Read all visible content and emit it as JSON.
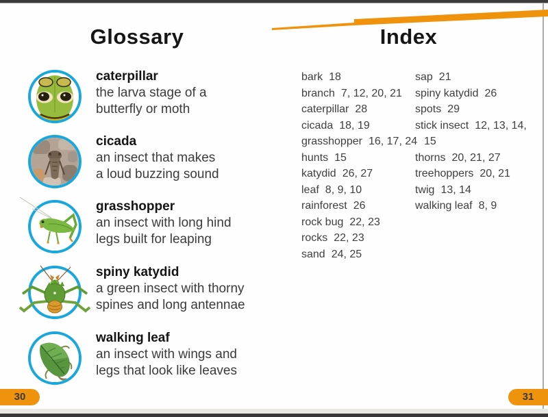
{
  "colors": {
    "accent_orange": "#EF920C",
    "photo_ring_blue": "#1AA7DC",
    "title_black": "#161616",
    "body_text": "#3B3B3B",
    "edge_bar": "#3B3B3B"
  },
  "page": {
    "left_page_number": "30",
    "right_page_number": "31"
  },
  "icons": [
    "caterpillar-photo",
    "cicada-photo",
    "grasshopper-photo",
    "spiny-katydid-photo",
    "walking-leaf-photo",
    "orange-swoosh"
  ],
  "glossary": {
    "title": "Glossary",
    "entries": [
      {
        "term": "caterpillar",
        "icon": "caterpillar-photo",
        "lines": [
          "the larva stage of a",
          "butterfly or moth"
        ]
      },
      {
        "term": "cicada",
        "icon": "cicada-photo",
        "lines": [
          "an insect that makes",
          "a loud buzzing sound"
        ]
      },
      {
        "term": "grasshopper",
        "icon": "grasshopper-photo",
        "lines": [
          "an insect with long hind",
          "legs built for leaping"
        ]
      },
      {
        "term": "spiny katydid",
        "icon": "spiny-katydid-photo",
        "lines": [
          "a green insect with thorny",
          "spines and long antennae"
        ]
      },
      {
        "term": "walking leaf",
        "icon": "walking-leaf-photo",
        "lines": [
          "an insect with wings and",
          "legs that look like leaves"
        ]
      }
    ]
  },
  "index": {
    "title": "Index",
    "columns": [
      {
        "entries": [
          {
            "term": "bark",
            "pages": "18"
          },
          {
            "term": "branch",
            "pages": "7, 12, 20, 21"
          },
          {
            "term": "caterpillar",
            "pages": "28"
          },
          {
            "term": "cicada",
            "pages": "18, 19"
          },
          {
            "term": "grasshopper",
            "pages": "16, 17, 24"
          },
          {
            "term": "hunts",
            "pages": "15"
          },
          {
            "term": "katydid",
            "pages": "26, 27"
          },
          {
            "term": "leaf",
            "pages": "8, 9, 10"
          },
          {
            "term": "rainforest",
            "pages": "26"
          },
          {
            "term": "rock bug",
            "pages": "22, 23"
          },
          {
            "term": "rocks",
            "pages": "22, 23"
          },
          {
            "term": "sand",
            "pages": "24, 25"
          }
        ]
      },
      {
        "entries": [
          {
            "term": "sap",
            "pages": "21"
          },
          {
            "term": "spiny katydid",
            "pages": "26"
          },
          {
            "term": "spots",
            "pages": "29"
          },
          {
            "term": "stick insect",
            "pages": "12, 13, 14, 15"
          },
          {
            "term": "thorns",
            "pages": "20, 21, 27"
          },
          {
            "term": "treehoppers",
            "pages": "20, 21"
          },
          {
            "term": "twig",
            "pages": "13, 14"
          },
          {
            "term": "walking leaf",
            "pages": "8, 9"
          }
        ]
      }
    ]
  }
}
